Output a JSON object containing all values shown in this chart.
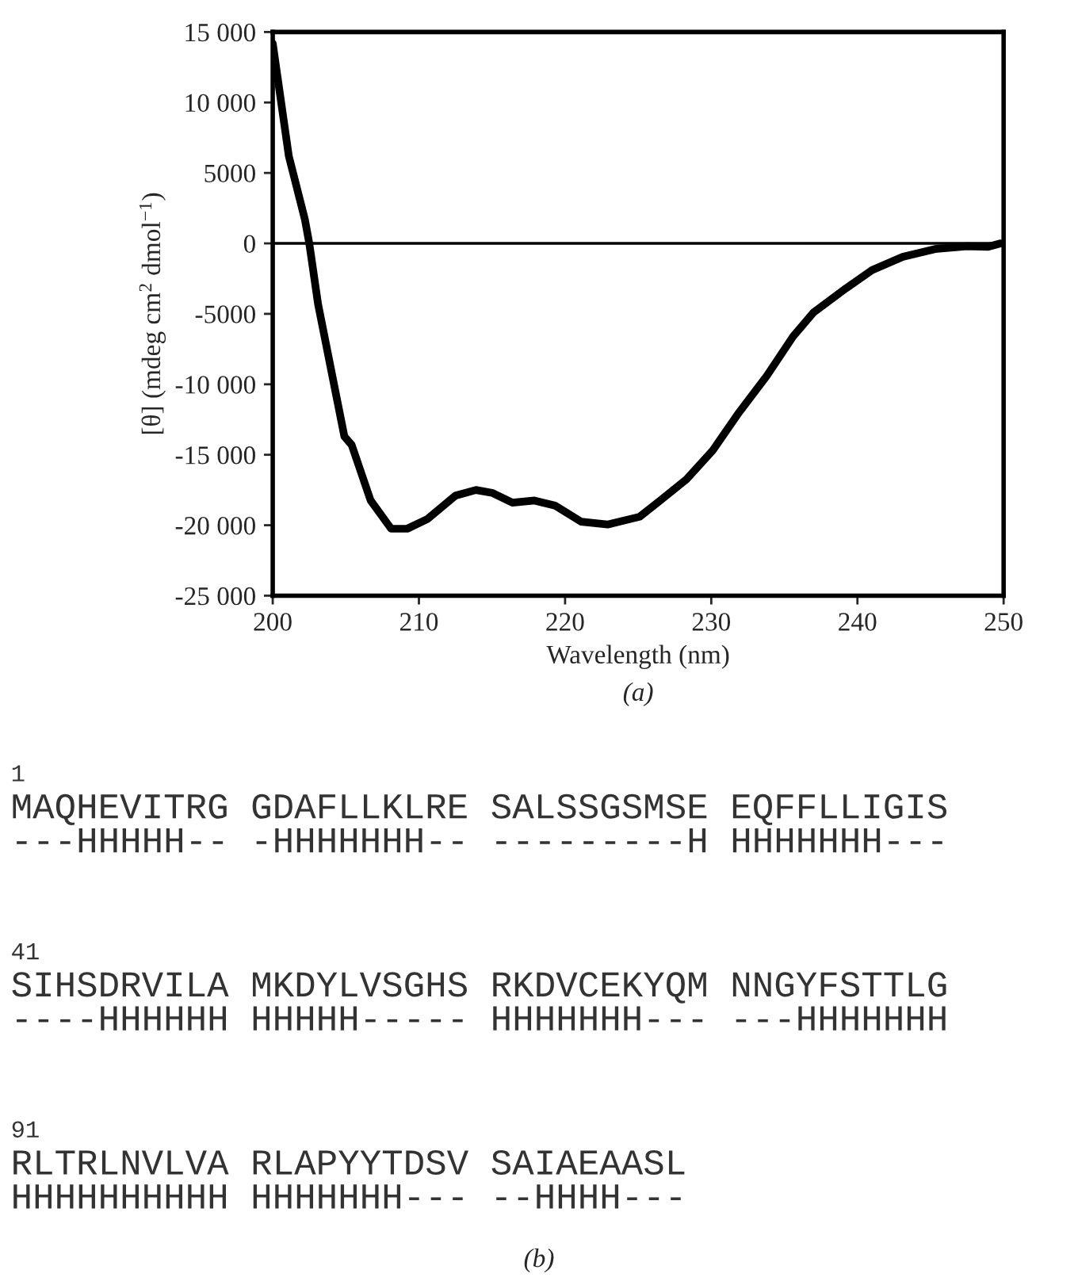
{
  "chart_data": [
    {
      "type": "line",
      "xlabel": "Wavelength (nm)",
      "ylabel": "[θ] (mdeg cm$^{2}$ dmol$^{−1}$)",
      "annotations": [
        "(a)"
      ],
      "series": [
        {
          "color": "#000000",
          "x": [
            200,
            201.1,
            202.2,
            202.5,
            203.1,
            204.9,
            205.4,
            206.7,
            208.1,
            209.2,
            210.6,
            212.5,
            213.9,
            215,
            216.4,
            217.9,
            219.3,
            221.1,
            222.9,
            225.1,
            226.5,
            228.3,
            230.1,
            231.9,
            233.8,
            235.6,
            237,
            239.2,
            241,
            243.1,
            245.3,
            247.5,
            248.9,
            249.8
          ],
          "values": [
            14200,
            6200,
            1700,
            0,
            -4300,
            -13700,
            -14300,
            -18250,
            -20250,
            -20250,
            -19550,
            -17900,
            -17500,
            -17700,
            -18400,
            -18250,
            -18600,
            -19750,
            -19950,
            -19400,
            -18250,
            -16750,
            -14700,
            -12000,
            -9400,
            -6600,
            -4900,
            -3200,
            -1900,
            -950,
            -400,
            -200,
            -250,
            0
          ]
        }
      ],
      "xlim": [
        200,
        250
      ],
      "xticks": [
        200,
        210,
        220,
        230,
        240,
        250
      ],
      "ylim": [
        -25000,
        15000
      ],
      "yticks": [
        {
          "value": -25000,
          "label": "-25 000"
        },
        {
          "value": -20000,
          "label": "-20 000"
        },
        {
          "value": -15000,
          "label": "-15 000"
        },
        {
          "value": -10000,
          "label": "-10 000"
        },
        {
          "value": -5000,
          "label": "-5000"
        },
        0,
        5000,
        {
          "value": 10000,
          "label": "10 000"
        },
        {
          "value": 15000,
          "label": "15 000"
        }
      ],
      "ref_lines": [
        {
          "axis": "y",
          "value": 0,
          "color": "#000000"
        }
      ],
      "grid": false,
      "marker": "none",
      "line_style": "solid"
    },
    {
      "type": "other",
      "annotations": [
        "1",
        "MAQHEVITRG GDAFLLKLRE SALSSGSMSE EQFFLLIGIS",
        "---HHHHH-- -HHHHHHH-- ---------H HHHHHHH---",
        "41",
        "SIHSDRVILA MKDYLVSGHS RKDVCEKYQM NNGYFSTTLG",
        "----HHHHHH HHHHH----- HHHHHHH--- ---HHHHHHH",
        "91",
        "RLTRLNVLVA RLAPYYTDSV SAIAEAASL",
        "HHHHHHHHHH HHHHHHH--- --HHHH---",
        "(b)"
      ]
    }
  ]
}
